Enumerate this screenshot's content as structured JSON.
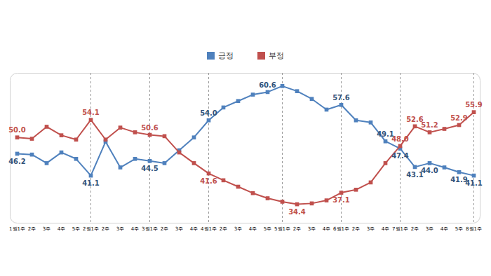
{
  "chart_data": {
    "type": "line",
    "categories": [
      "1월1주",
      "2주",
      "3주",
      "4주",
      "5주",
      "2월1주",
      "2주",
      "3주",
      "4주",
      "3월1주",
      "2주",
      "3주",
      "4주",
      "4월1주",
      "2주",
      "3주",
      "4주",
      "5주",
      "5월1주",
      "2주",
      "3주",
      "4주",
      "6월1주",
      "2주",
      "3주",
      "4주",
      "7월1주",
      "2주",
      "3주",
      "4주",
      "5주",
      "8월1주"
    ],
    "series": [
      {
        "name": "긍정",
        "color": "#4f81bd",
        "values": [
          46.2,
          46.0,
          44.0,
          46.5,
          45.0,
          41.1,
          49.0,
          43.0,
          45.0,
          44.5,
          44.0,
          47.0,
          50.0,
          54.0,
          57.0,
          58.5,
          60.0,
          60.6,
          62.0,
          60.8,
          59.0,
          56.5,
          57.6,
          54.0,
          53.5,
          49.1,
          47.4,
          43.1,
          44.0,
          43.0,
          41.9,
          41.1
        ],
        "value_labels": [
          "46.2",
          null,
          null,
          null,
          null,
          "41.1",
          null,
          null,
          null,
          "44.5",
          null,
          null,
          null,
          "54.0",
          null,
          null,
          null,
          "60.6",
          null,
          null,
          null,
          null,
          "57.6",
          null,
          null,
          "49.1",
          "47.4",
          "43.1",
          "44.0",
          null,
          "41.9",
          "41.1"
        ]
      },
      {
        "name": "부정",
        "color": "#c0504d",
        "values": [
          50.0,
          49.7,
          52.5,
          50.5,
          49.5,
          54.1,
          49.5,
          52.3,
          51.2,
          50.6,
          50.3,
          46.5,
          44.0,
          41.6,
          40.0,
          38.5,
          37.0,
          35.8,
          35.0,
          34.4,
          34.6,
          35.3,
          37.1,
          37.8,
          39.5,
          44.0,
          48.0,
          52.6,
          51.2,
          52.0,
          52.9,
          55.9
        ],
        "value_labels": [
          "50.0",
          null,
          null,
          null,
          null,
          "54.1",
          null,
          null,
          null,
          "50.6",
          null,
          null,
          null,
          "41.6",
          null,
          null,
          null,
          null,
          null,
          "34.4",
          null,
          null,
          "37.1",
          null,
          null,
          null,
          "48.0",
          "52.6",
          "51.2",
          null,
          "52.9",
          "55.9"
        ]
      }
    ],
    "ylim": [
      30,
      65
    ],
    "yticks": [],
    "tick_labels": "x",
    "grid": true,
    "legend": "top",
    "marker": "square",
    "data_labels": true
  }
}
